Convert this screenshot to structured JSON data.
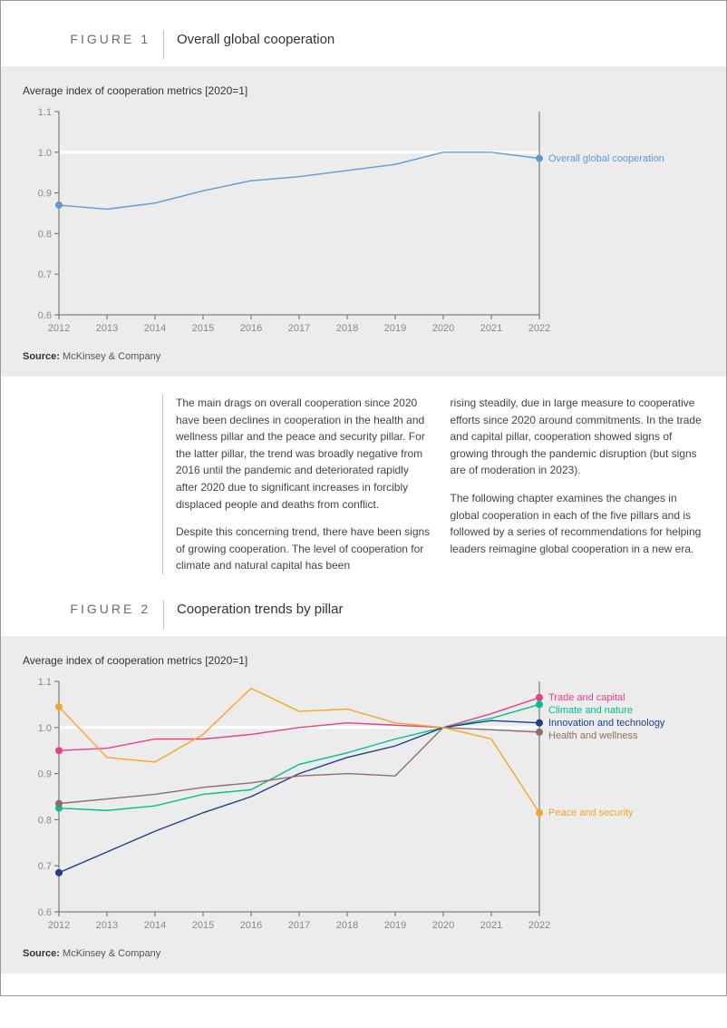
{
  "figure1": {
    "label": "FIGURE 1",
    "title": "Overall global cooperation",
    "subtitle": "Average index of cooperation metrics [2020=1]",
    "source_prefix": "Source:",
    "source": "McKinsey & Company",
    "chart": {
      "type": "line",
      "background_color": "#ececec",
      "plot_background": "#ececec",
      "grid_color": "#ffffff",
      "axis_color": "#666666",
      "tick_color": "#666666",
      "label_color": "#888888",
      "tick_fontsize": 11,
      "xlim": [
        2012,
        2022
      ],
      "ylim": [
        0.6,
        1.1
      ],
      "ytick_step": 0.1,
      "xtick_step": 1,
      "reference_line_y": 1.0,
      "x": [
        2012,
        2013,
        2014,
        2015,
        2016,
        2017,
        2018,
        2019,
        2020,
        2021,
        2022
      ],
      "series": [
        {
          "name": "Overall global cooperation",
          "color": "#5b9bd5",
          "line_width": 1.4,
          "marker_radius": 4,
          "values": [
            0.87,
            0.86,
            0.875,
            0.905,
            0.93,
            0.94,
            0.955,
            0.97,
            1.0,
            1.0,
            0.985
          ]
        }
      ]
    }
  },
  "body": {
    "col1_p1": "The main drags on overall cooperation since 2020 have been declines in cooperation in the health and wellness pillar and the peace and security pillar. For the latter pillar, the trend was broadly negative from 2016 until the pandemic and deteriorated rapidly after 2020 due to significant increases in forcibly displaced people and deaths from conflict.",
    "col1_p2": "Despite this concerning trend, there have been signs of growing cooperation. The level of cooperation for climate and natural capital has been",
    "col2_p1": "rising steadily, due in large measure to cooperative efforts since 2020 around commitments. In the trade and capital pillar, cooperation showed signs of growing through the pandemic disruption (but signs are of moderation in 2023).",
    "col2_p2": "The following chapter examines the changes in global cooperation in each of the five pillars and is followed by a series of recommendations for helping leaders reimagine global cooperation in a new era."
  },
  "figure2": {
    "label": "FIGURE 2",
    "title": "Cooperation trends by pillar",
    "subtitle": "Average index of cooperation metrics [2020=1]",
    "source_prefix": "Source:",
    "source": "McKinsey & Company",
    "chart": {
      "type": "line",
      "background_color": "#ececec",
      "grid_color": "#ffffff",
      "axis_color": "#666666",
      "tick_color": "#666666",
      "label_color": "#888888",
      "tick_fontsize": 11,
      "xlim": [
        2012,
        2022
      ],
      "ylim": [
        0.6,
        1.1
      ],
      "ytick_step": 0.1,
      "xtick_step": 1,
      "reference_line_y": 1.0,
      "x": [
        2012,
        2013,
        2014,
        2015,
        2016,
        2017,
        2018,
        2019,
        2020,
        2021,
        2022
      ],
      "series": [
        {
          "name": "Trade and capital",
          "color": "#e83e8c",
          "line_width": 1.4,
          "marker_radius": 4,
          "values": [
            0.95,
            0.955,
            0.975,
            0.975,
            0.985,
            1.0,
            1.01,
            1.005,
            1.0,
            1.03,
            1.065
          ]
        },
        {
          "name": "Climate and nature",
          "color": "#00c08b",
          "line_width": 1.4,
          "marker_radius": 4,
          "values": [
            0.825,
            0.82,
            0.83,
            0.855,
            0.865,
            0.92,
            0.945,
            0.975,
            1.0,
            1.02,
            1.05
          ]
        },
        {
          "name": "Innovation and technology",
          "color": "#1f3f8c",
          "line_width": 1.4,
          "marker_radius": 4,
          "values": [
            0.685,
            0.73,
            0.775,
            0.815,
            0.85,
            0.9,
            0.935,
            0.96,
            1.0,
            1.015,
            1.01
          ]
        },
        {
          "name": "Health and wellness",
          "color": "#8c6f63",
          "line_width": 1.4,
          "marker_radius": 4,
          "values": [
            0.835,
            0.845,
            0.855,
            0.87,
            0.88,
            0.895,
            0.9,
            0.895,
            1.0,
            0.995,
            0.99
          ]
        },
        {
          "name": "Peace and security",
          "color": "#f5a623",
          "line_width": 1.4,
          "marker_radius": 4,
          "values": [
            1.045,
            0.935,
            0.925,
            0.985,
            1.085,
            1.035,
            1.04,
            1.01,
            1.0,
            0.975,
            0.815
          ]
        }
      ]
    }
  }
}
